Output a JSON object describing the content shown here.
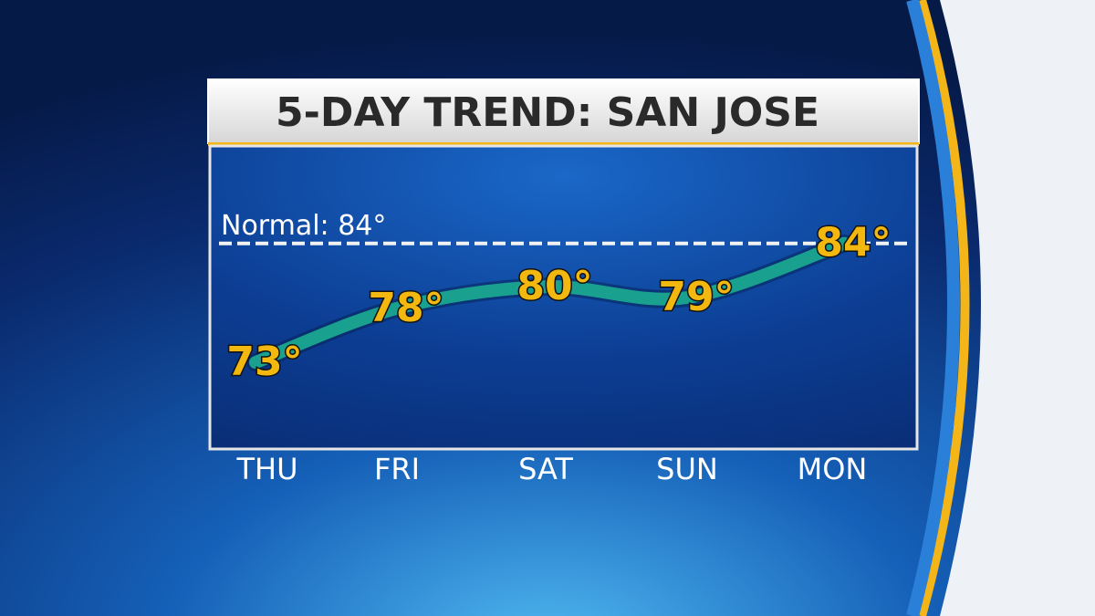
{
  "chart_data": {
    "type": "line",
    "title": "5-DAY TREND:  SAN JOSE",
    "categories": [
      "THU",
      "FRI",
      "SAT",
      "SUN",
      "MON"
    ],
    "values": [
      73,
      78,
      80,
      79,
      84
    ],
    "value_labels": [
      "73°",
      "78°",
      "80°",
      "79°",
      "84°"
    ],
    "color": "#1aa08e",
    "normal": {
      "label": "Normal:  84°",
      "value": 84
    },
    "ylim": [
      65,
      93
    ]
  }
}
